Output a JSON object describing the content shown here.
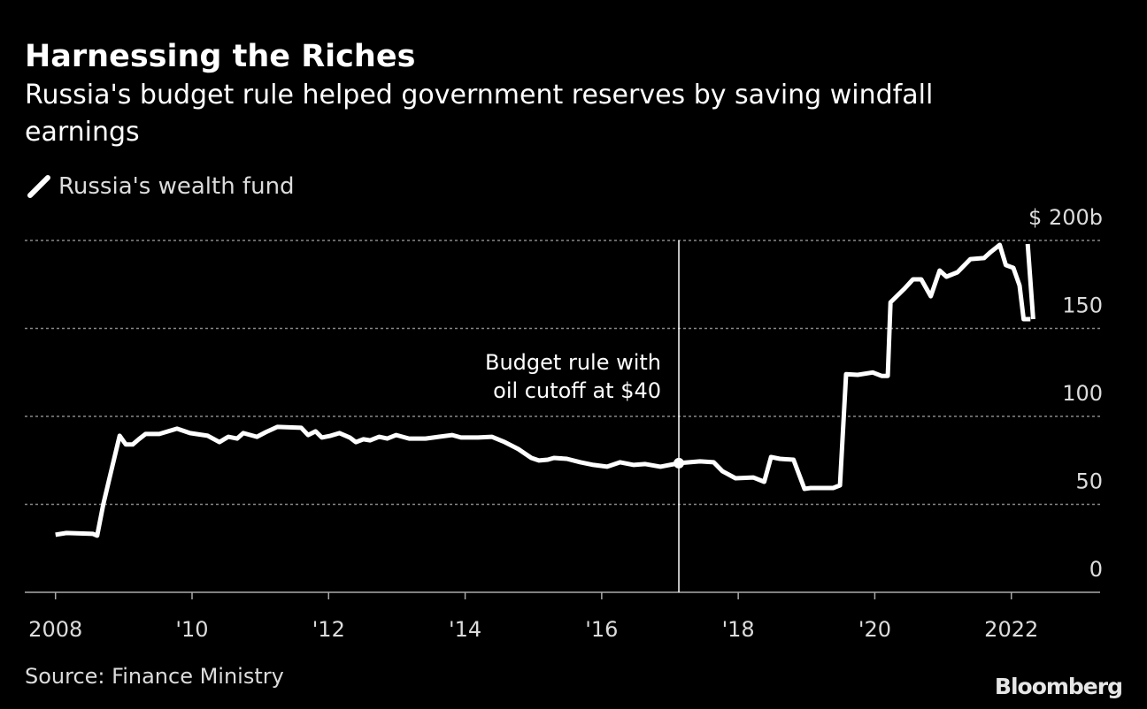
{
  "chart_data": {
    "type": "line",
    "title": "Harnessing the Riches",
    "subtitle": "Russia's budget rule helped government reserves by saving windfall earnings",
    "source": "Source: Finance Ministry",
    "brand": "Bloomberg",
    "xlim": [
      2007.55,
      2023.3
    ],
    "xticks": [
      2008,
      {
        "value": 2010,
        "label": "'10"
      },
      {
        "value": 2012,
        "label": "'12"
      },
      {
        "value": 2014,
        "label": "'14"
      },
      {
        "value": 2016,
        "label": "'16"
      },
      {
        "value": 2018,
        "label": "'18"
      },
      {
        "value": 2020,
        "label": "'20"
      },
      2022
    ],
    "ylim": [
      0,
      200
    ],
    "yticks": [
      0,
      50,
      100,
      150,
      {
        "value": 200,
        "label": "$ 200b"
      }
    ],
    "grid": true,
    "annotation": {
      "text": [
        "Budget rule with",
        "oil cutoff at $40"
      ],
      "x": 2017.13,
      "y": 73.4
    },
    "x": [
      2008.0,
      2008.16,
      2008.55,
      2008.61,
      2008.7,
      2008.81,
      2008.94,
      2009.03,
      2009.13,
      2009.22,
      2009.32,
      2009.52,
      2009.78,
      2009.97,
      2010.23,
      2010.4,
      2010.53,
      2010.66,
      2010.75,
      2010.95,
      2011.08,
      2011.25,
      2011.6,
      2011.7,
      2011.81,
      2011.9,
      2012.03,
      2012.16,
      2012.31,
      2012.4,
      2012.51,
      2012.61,
      2012.74,
      2012.86,
      2012.99,
      2013.18,
      2013.42,
      2013.61,
      2013.81,
      2013.94,
      2014.19,
      2014.39,
      2014.58,
      2014.78,
      2014.97,
      2015.08,
      2015.21,
      2015.3,
      2015.49,
      2015.69,
      2015.88,
      2016.08,
      2016.27,
      2016.47,
      2016.64,
      2016.86,
      2017.13,
      2017.44,
      2017.64,
      2017.77,
      2017.96,
      2018.22,
      2018.38,
      2018.48,
      2018.61,
      2018.81,
      2018.97,
      2019.06,
      2019.39,
      2019.49,
      2019.58,
      2019.75,
      2019.97,
      2020.1,
      2020.19,
      2020.23,
      2020.43,
      2020.56,
      2020.68,
      2020.82,
      2020.95,
      2021.05,
      2021.21,
      2021.4,
      2021.6,
      2021.7,
      2021.83,
      2021.92,
      2022.03,
      2022.12,
      2022.18,
      2022.28,
      2022.29,
      2022.24,
      2022.32
    ],
    "series": [
      {
        "name": "Russia's wealth fund",
        "color": "#ffffff",
        "values": [
          32.7,
          33.7,
          33.2,
          32.2,
          50,
          68,
          89,
          84,
          84,
          87,
          90,
          90,
          93,
          90.5,
          89,
          85.4,
          88.4,
          87.4,
          90.5,
          88.4,
          91,
          94,
          93.5,
          89.4,
          91.5,
          88,
          89,
          90.5,
          88,
          85.4,
          87,
          86.4,
          88.4,
          87.4,
          89.4,
          87.4,
          87.4,
          88.4,
          89.4,
          88,
          88,
          88.4,
          85.4,
          81.4,
          76.4,
          74.9,
          75.4,
          76.4,
          75.9,
          73.9,
          72.4,
          71.4,
          73.9,
          72.4,
          72.9,
          71.4,
          73.4,
          74.4,
          73.9,
          68.8,
          64.8,
          65.3,
          62.8,
          76.9,
          75.9,
          75.4,
          58.8,
          59.3,
          59.3,
          60.8,
          124,
          123.6,
          125,
          123,
          123,
          164.8,
          172.4,
          177.9,
          177.9,
          168.3,
          182.9,
          179.4,
          181.9,
          189.4,
          190,
          193.5,
          197.5,
          186,
          184.4,
          174.4,
          155.3,
          155.3,
          null,
          198,
          155.3
        ]
      }
    ]
  }
}
